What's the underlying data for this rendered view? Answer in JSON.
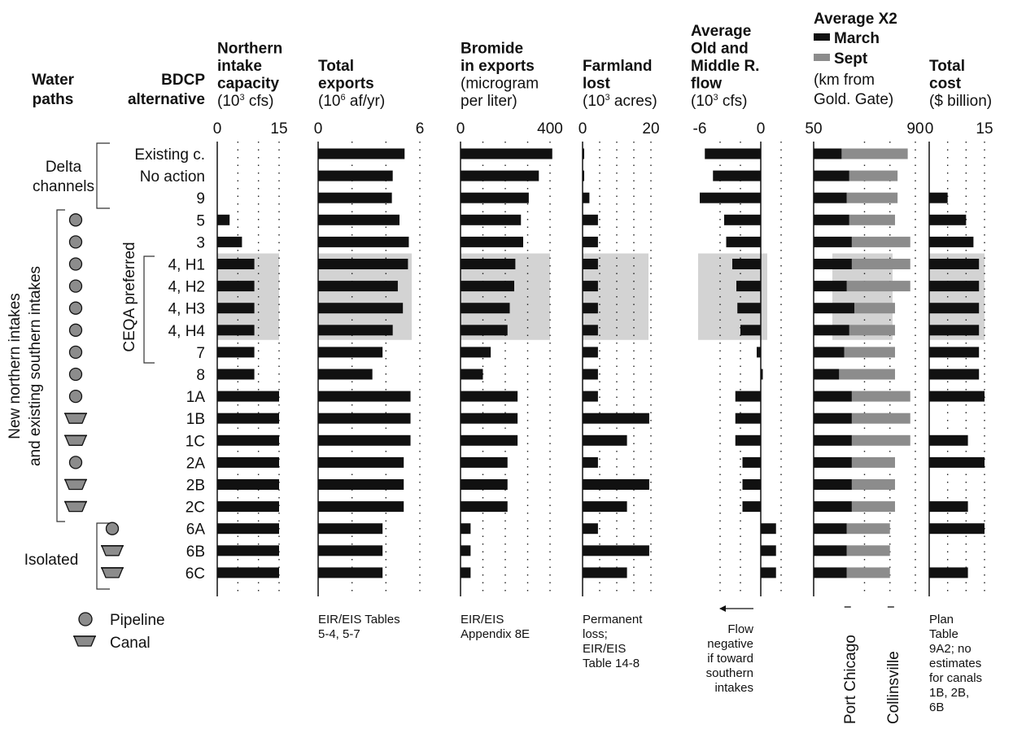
{
  "colors": {
    "bar": "#111111",
    "sept": "#8c8c8c",
    "highlight": "#d3d3d3",
    "pipeline": "#8c8c8c",
    "grid": "#222222"
  },
  "header": {
    "water_paths": [
      "Water",
      "paths"
    ],
    "alternative": [
      "BDCP",
      "alternative"
    ]
  },
  "rows": [
    "Existing c.",
    "No action",
    "9",
    "5",
    "3",
    "4, H1",
    "4, H2",
    "4, H3",
    "4, H4",
    "7",
    "8",
    "1A",
    "1B",
    "1C",
    "2A",
    "2B",
    "2C",
    "6A",
    "6B",
    "6C"
  ],
  "groups": {
    "delta": [
      "Delta",
      "channels"
    ],
    "new": [
      "New northern intakes",
      "and existing southern intakes"
    ],
    "isolated": "Isolated",
    "ceqa": "CEQA preferred"
  },
  "row_icons": [
    null,
    null,
    null,
    "pipeline",
    "pipeline",
    "pipeline",
    "pipeline",
    "pipeline",
    "pipeline",
    "pipeline",
    "pipeline",
    "pipeline",
    "canal",
    "canal",
    "pipeline",
    "canal",
    "canal",
    "pipeline",
    "canal",
    "canal"
  ],
  "legend": {
    "pipeline": "Pipeline",
    "canal": "Canal"
  },
  "chart_data": [
    {
      "type": "bar",
      "id": "capacity",
      "title": [
        "Northern",
        "intake",
        "capacity"
      ],
      "unit_pre": "(10",
      "unit_sup": "3",
      "unit_post": " cfs)",
      "xlim": [
        0,
        15
      ],
      "ticks": [
        "0",
        "15"
      ],
      "grid": [
        5,
        10,
        15
      ],
      "values": [
        null,
        null,
        null,
        3,
        6,
        9,
        9,
        9,
        9,
        9,
        9,
        15,
        15,
        15,
        15,
        15,
        15,
        15,
        15,
        15
      ],
      "note": []
    },
    {
      "type": "bar",
      "id": "exports",
      "title": [
        "Total",
        "exports"
      ],
      "unit_pre": "(10",
      "unit_sup": "6",
      "unit_post": " af/yr)",
      "xlim": [
        0,
        6
      ],
      "ticks": [
        "0",
        "6"
      ],
      "grid": [
        2,
        4,
        6
      ],
      "values": [
        5.1,
        4.4,
        4.35,
        4.8,
        5.35,
        5.3,
        4.7,
        5.0,
        4.4,
        3.8,
        3.2,
        5.45,
        5.45,
        5.45,
        5.05,
        5.05,
        5.05,
        3.8,
        3.8,
        3.8
      ],
      "note": [
        "EIR/EIS Tables",
        "5-4, 5-7"
      ]
    },
    {
      "type": "bar",
      "id": "bromide",
      "title": [
        "Bromide",
        "in exports"
      ],
      "unit_lines": [
        "(microgram",
        "per liter)"
      ],
      "xlim": [
        0,
        400
      ],
      "ticks": [
        "0",
        "400"
      ],
      "grid": [
        100,
        200,
        300,
        400
      ],
      "values": [
        410,
        350,
        305,
        270,
        280,
        245,
        240,
        220,
        210,
        135,
        100,
        255,
        255,
        255,
        210,
        210,
        210,
        45,
        45,
        45
      ],
      "note": [
        "EIR/EIS",
        "Appendix 8E"
      ]
    },
    {
      "type": "bar",
      "id": "farmland",
      "title": [
        "Farmland",
        "lost"
      ],
      "unit_pre": "(10",
      "unit_sup": "3",
      "unit_post": " acres)",
      "xlim": [
        0,
        20
      ],
      "ticks": [
        "0",
        "20"
      ],
      "grid": [
        5,
        10,
        15,
        20
      ],
      "values": [
        0,
        0,
        2,
        4.5,
        4.5,
        4.5,
        4.5,
        4.5,
        4.5,
        4.5,
        4.5,
        4.5,
        19.5,
        13,
        4.5,
        19.5,
        13,
        4.5,
        19.5,
        13
      ],
      "note": [
        "Permanent",
        "loss;",
        "EIR/EIS",
        "Table 14-8"
      ]
    },
    {
      "type": "bar",
      "id": "oldmiddle",
      "title": [
        "Average",
        "Old and",
        "Middle R.",
        "flow"
      ],
      "unit_pre": "(10",
      "unit_sup": "3",
      "unit_post": " cfs)",
      "xlim": [
        -6,
        2
      ],
      "ticks": [
        "-6",
        "0"
      ],
      "grid": [
        -4,
        -2,
        2
      ],
      "values": [
        -5.5,
        -4.7,
        -6.0,
        -3.6,
        -3.4,
        -2.8,
        -2.4,
        -2.3,
        -2.0,
        -0.4,
        0.2,
        -2.5,
        -2.5,
        -2.5,
        -1.8,
        -1.8,
        -1.8,
        1.5,
        1.5,
        1.5
      ],
      "note": [
        "Flow",
        "negative",
        "if toward",
        "southern",
        "intakes"
      ]
    },
    {
      "type": "bar",
      "id": "x2",
      "title": [
        "Average X2"
      ],
      "series": [
        {
          "name": "March",
          "values": [
            61,
            64,
            63,
            64,
            65,
            65,
            63,
            66,
            64,
            62,
            60,
            65,
            65,
            65,
            65,
            65,
            65,
            63,
            63,
            63
          ]
        },
        {
          "name": "Sept",
          "values": [
            87,
            83,
            83,
            82,
            88,
            88,
            88,
            82,
            82,
            82,
            82,
            88,
            88,
            88,
            82,
            82,
            82,
            80,
            80,
            80
          ]
        }
      ],
      "unit_lines": [
        "(km from",
        "Gold. Gate)"
      ],
      "xlim": [
        50,
        90
      ],
      "ticks": [
        "50",
        "90"
      ],
      "grid": [
        70,
        80,
        90
      ],
      "markers": [
        {
          "label": "Port Chicago",
          "x": 64
        },
        {
          "label": "Collinsville",
          "x": 81
        }
      ]
    },
    {
      "type": "bar",
      "id": "cost",
      "title": [
        "Total",
        "cost"
      ],
      "unit_lines": [
        "($ billion)"
      ],
      "xlim": [
        0,
        15
      ],
      "ticks": [
        "0",
        "15"
      ],
      "grid": [
        5,
        10,
        15
      ],
      "values": [
        null,
        null,
        5,
        10,
        12,
        13.5,
        13.5,
        13.5,
        13.5,
        13.5,
        13.5,
        15,
        null,
        10.5,
        15,
        null,
        10.5,
        15,
        null,
        10.5
      ],
      "note": [
        "Plan",
        "Table",
        "9A2; no",
        "estimates",
        "for canals",
        "1B, 2B,",
        "6B"
      ]
    }
  ]
}
